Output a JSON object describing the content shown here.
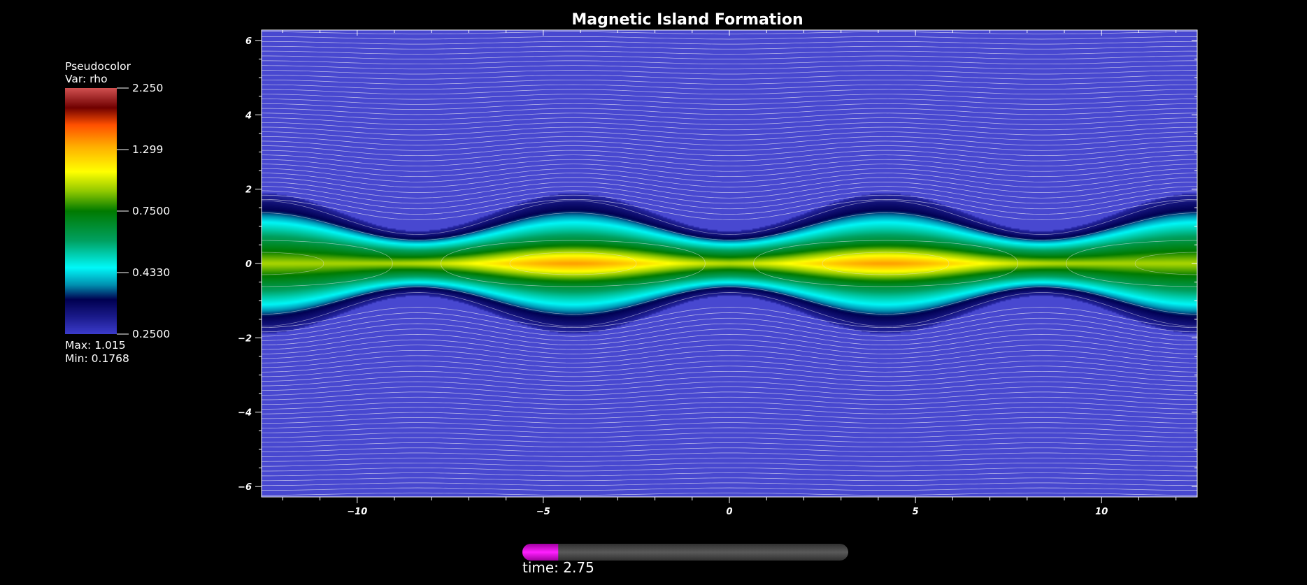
{
  "chart_data": {
    "type": "heatmap",
    "title": "Magnetic Island Formation",
    "xlabel": "",
    "ylabel": "",
    "xlim": [
      -12.57,
      12.57
    ],
    "ylim": [
      -6.28,
      6.28
    ],
    "x_ticks": [
      -10,
      -5,
      0,
      5,
      10
    ],
    "y_ticks": [
      -6,
      -4,
      -2,
      0,
      2,
      4,
      6
    ],
    "grid": false,
    "legend": {
      "title": "Pseudocolor",
      "variable": "Var: rho",
      "placement": "left",
      "tick_labels": [
        "2.250",
        "1.299",
        "0.7500",
        "0.4330",
        "0.2500"
      ],
      "max_label": "Max:  1.015",
      "min_label": "Min:  0.1768",
      "scale": "log",
      "range": [
        0.25,
        2.25
      ]
    },
    "colors": {
      "background_field": "#4848d0",
      "contour_lines": "#e6e6f0"
    },
    "colormap": [
      {
        "t": 0.0,
        "color": "#3b3bcc"
      },
      {
        "t": 0.07,
        "color": "#1a1a8a"
      },
      {
        "t": 0.14,
        "color": "#000050"
      },
      {
        "t": 0.2,
        "color": "#0090b0"
      },
      {
        "t": 0.27,
        "color": "#00f8f8"
      },
      {
        "t": 0.38,
        "color": "#00a060"
      },
      {
        "t": 0.5,
        "color": "#007a00"
      },
      {
        "t": 0.58,
        "color": "#90c800"
      },
      {
        "t": 0.66,
        "color": "#ffff00"
      },
      {
        "t": 0.76,
        "color": "#ffb000"
      },
      {
        "t": 0.85,
        "color": "#ff5000"
      },
      {
        "t": 0.92,
        "color": "#700000"
      },
      {
        "t": 1.0,
        "color": "#d05050"
      }
    ],
    "field": {
      "description": "Harris current sheet perturbed into magnetic islands",
      "island_centers_x": [
        -4.2,
        4.2
      ],
      "x_points_x": [
        -12.57,
        0,
        12.57
      ],
      "island_peak_rho": 1.015,
      "background_rho": 0.1768
    },
    "time_slider": {
      "label": "time: 2.75",
      "progress": 0.11
    }
  }
}
